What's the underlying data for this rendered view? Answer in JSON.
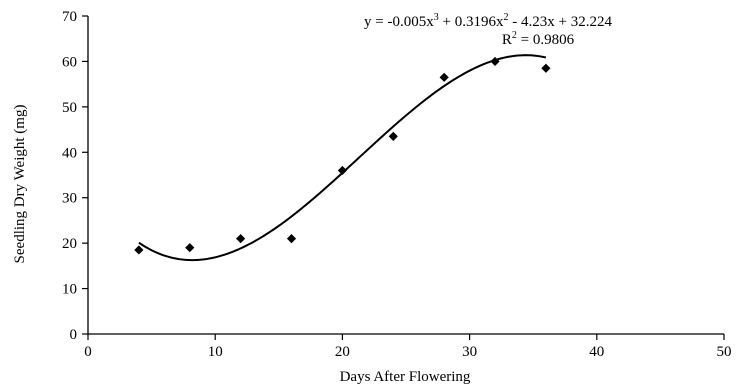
{
  "chart_data": {
    "type": "scatter",
    "xlabel": "Days After Flowering",
    "ylabel": "Seedling Dry Weight (mg)",
    "xlim": [
      0,
      50
    ],
    "ylim": [
      0,
      70
    ],
    "xticks": [
      "0",
      "10",
      "20",
      "30",
      "40",
      "50"
    ],
    "yticks": [
      "0",
      "10",
      "20",
      "30",
      "40",
      "50",
      "60",
      "70"
    ],
    "grid": false,
    "points": {
      "x": [
        4,
        8,
        12,
        16,
        20,
        24,
        28,
        32,
        36
      ],
      "y": [
        18.5,
        19,
        21,
        21,
        36,
        43.5,
        56.5,
        60,
        58.5
      ]
    },
    "trendline": {
      "type": "polynomial-3",
      "coefficients": {
        "a3": -0.005,
        "a2": 0.3196,
        "a1": -4.23,
        "a0": 32.224
      },
      "x_range": [
        4,
        36
      ],
      "equation": {
        "prefix": "y = -0.005x",
        "sup1": "3",
        "mid1": " + 0.3196x",
        "sup2": "2",
        "tail": " - 4.23x + 32.224"
      },
      "r2": {
        "prefix": "R",
        "sup": "2",
        "tail": " = 0.9806"
      }
    },
    "marker_color": "#000000",
    "line_color": "#000000"
  }
}
